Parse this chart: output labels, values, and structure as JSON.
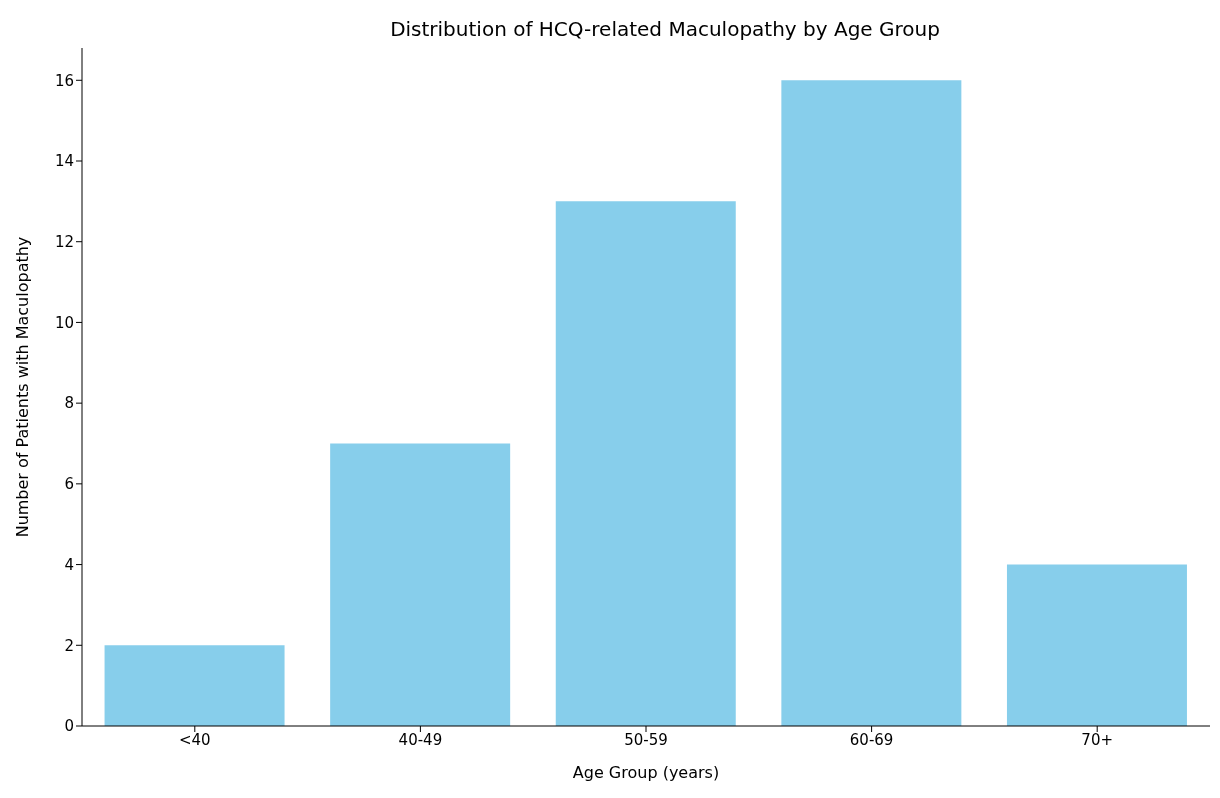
{
  "chart_data": {
    "type": "bar",
    "title": "Distribution of HCQ-related Maculopathy by Age Group",
    "xlabel": "Age Group (years)",
    "ylabel": "Number of Patients with Maculopathy",
    "categories": [
      "<40",
      "40-49",
      "50-59",
      "60-69",
      "70+"
    ],
    "values": [
      2,
      7,
      13,
      16,
      4
    ],
    "color": "#87ceeb",
    "ylim": [
      0,
      16.8
    ],
    "yticks": [
      0,
      2,
      4,
      6,
      8,
      10,
      12,
      14,
      16
    ],
    "grid": false,
    "legend": false
  }
}
